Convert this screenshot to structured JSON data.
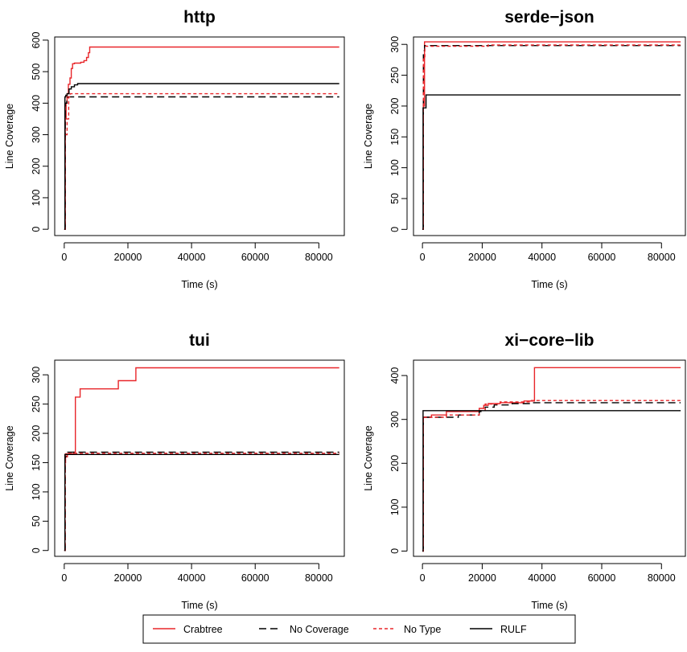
{
  "colors": {
    "crabtree": "#e8262a",
    "no_coverage": "#000000",
    "no_type": "#e8262a",
    "rulf": "#000000"
  },
  "legend": {
    "placement": "bottom-center",
    "entries": [
      {
        "name": "Crabtree",
        "color": "#e8262a",
        "dash": "solid"
      },
      {
        "name": "No Coverage",
        "color": "#000000",
        "dash": "dashed"
      },
      {
        "name": "No Type",
        "color": "#e8262a",
        "dash": "dotted"
      },
      {
        "name": "RULF",
        "color": "#000000",
        "dash": "solid"
      }
    ]
  },
  "chart_data": [
    {
      "type": "line",
      "title": "http",
      "xlabel": "Time (s)",
      "ylabel": "Line Coverage",
      "xlim": [
        -3000,
        88000
      ],
      "ylim": [
        -20,
        610
      ],
      "xticks": [
        0,
        20000,
        40000,
        60000,
        80000
      ],
      "yticks": [
        0,
        100,
        200,
        300,
        400,
        500,
        600
      ],
      "grid": false,
      "step": true,
      "series": [
        {
          "name": "Crabtree",
          "x": [
            0,
            300,
            600,
            900,
            1300,
            1800,
            2200,
            2600,
            3200,
            5200,
            6200,
            7000,
            7600,
            8000,
            86400
          ],
          "y": [
            0,
            350,
            400,
            430,
            460,
            480,
            510,
            525,
            527,
            530,
            535,
            545,
            560,
            578,
            578
          ]
        },
        {
          "name": "No Coverage",
          "x": [
            0,
            300,
            800,
            1200,
            86400
          ],
          "y": [
            0,
            400,
            415,
            420,
            420
          ]
        },
        {
          "name": "No Type",
          "x": [
            0,
            300,
            900,
            1400,
            1900,
            86400
          ],
          "y": [
            0,
            300,
            350,
            420,
            430,
            430
          ]
        },
        {
          "name": "RULF",
          "x": [
            0,
            200,
            500,
            900,
            1500,
            2200,
            3200,
            4200,
            86400
          ],
          "y": [
            0,
            420,
            425,
            430,
            445,
            452,
            458,
            462,
            462
          ]
        }
      ]
    },
    {
      "type": "line",
      "title": "serde−json",
      "xlabel": "Time (s)",
      "ylabel": "Line Coverage",
      "xlim": [
        -3000,
        88000
      ],
      "ylim": [
        -10,
        312
      ],
      "xticks": [
        0,
        20000,
        40000,
        60000,
        80000
      ],
      "yticks": [
        0,
        50,
        100,
        150,
        200,
        250,
        300
      ],
      "grid": false,
      "step": true,
      "series": [
        {
          "name": "Crabtree",
          "x": [
            0,
            300,
            700,
            86400
          ],
          "y": [
            0,
            200,
            304,
            304
          ]
        },
        {
          "name": "No Coverage",
          "x": [
            0,
            300,
            700,
            86400
          ],
          "y": [
            0,
            290,
            298,
            298
          ]
        },
        {
          "name": "No Type",
          "x": [
            0,
            300,
            800,
            22000,
            86400
          ],
          "y": [
            0,
            280,
            297,
            299,
            299
          ]
        },
        {
          "name": "RULF",
          "x": [
            0,
            200,
            1200,
            86400
          ],
          "y": [
            0,
            197,
            218,
            218
          ]
        }
      ]
    },
    {
      "type": "line",
      "title": "tui",
      "xlabel": "Time (s)",
      "ylabel": "Line Coverage",
      "xlim": [
        -3000,
        88000
      ],
      "ylim": [
        -10,
        325
      ],
      "xticks": [
        0,
        20000,
        40000,
        60000,
        80000
      ],
      "yticks": [
        0,
        50,
        100,
        150,
        200,
        250,
        300
      ],
      "grid": false,
      "step": true,
      "series": [
        {
          "name": "Crabtree",
          "x": [
            0,
            200,
            400,
            3000,
            3500,
            5000,
            17000,
            22500,
            86400
          ],
          "y": [
            0,
            150,
            165,
            168,
            262,
            276,
            290,
            312,
            312
          ]
        },
        {
          "name": "No Coverage",
          "x": [
            0,
            300,
            800,
            86400
          ],
          "y": [
            0,
            160,
            168,
            168
          ]
        },
        {
          "name": "No Type",
          "x": [
            0,
            300,
            1000,
            86400
          ],
          "y": [
            0,
            160,
            166,
            166
          ]
        },
        {
          "name": "RULF",
          "x": [
            0,
            200,
            86400
          ],
          "y": [
            0,
            164,
            164
          ]
        }
      ]
    },
    {
      "type": "line",
      "title": "xi−core−lib",
      "xlabel": "Time (s)",
      "ylabel": "Line Coverage",
      "xlim": [
        -3000,
        88000
      ],
      "ylim": [
        -12,
        435
      ],
      "xticks": [
        0,
        20000,
        40000,
        60000,
        80000
      ],
      "yticks": [
        0,
        100,
        200,
        300,
        400
      ],
      "grid": false,
      "step": true,
      "series": [
        {
          "name": "Crabtree",
          "x": [
            0,
            300,
            3000,
            8000,
            19000,
            20500,
            22000,
            26000,
            34000,
            37500,
            86400
          ],
          "y": [
            0,
            305,
            310,
            318,
            325,
            332,
            336,
            338,
            342,
            418,
            418
          ]
        },
        {
          "name": "No Coverage",
          "x": [
            0,
            300,
            12000,
            19000,
            21000,
            24000,
            30000,
            36000,
            86400
          ],
          "y": [
            0,
            305,
            310,
            318,
            328,
            333,
            336,
            338,
            338
          ]
        },
        {
          "name": "No Type",
          "x": [
            0,
            300,
            8000,
            19000,
            21000,
            26000,
            36000,
            86400
          ],
          "y": [
            0,
            305,
            310,
            320,
            335,
            340,
            343,
            343
          ]
        },
        {
          "name": "RULF",
          "x": [
            0,
            200,
            86400
          ],
          "y": [
            0,
            320,
            320
          ]
        }
      ]
    }
  ]
}
